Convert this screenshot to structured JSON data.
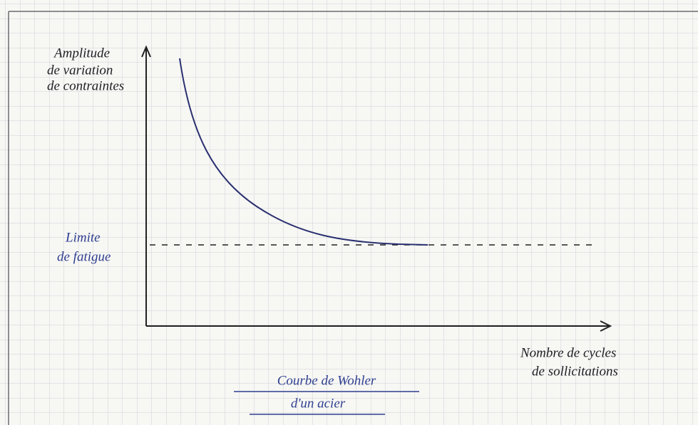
{
  "y_axis_label": [
    "Amplitude",
    "de variation",
    "de contraintes"
  ],
  "fatigue_limit_label": [
    "Limite",
    "de fatigue"
  ],
  "x_axis_label": [
    "Nombre de cycles",
    "de sollicitations"
  ],
  "title": [
    "Courbe de Wohler",
    "d'un acier"
  ]
}
